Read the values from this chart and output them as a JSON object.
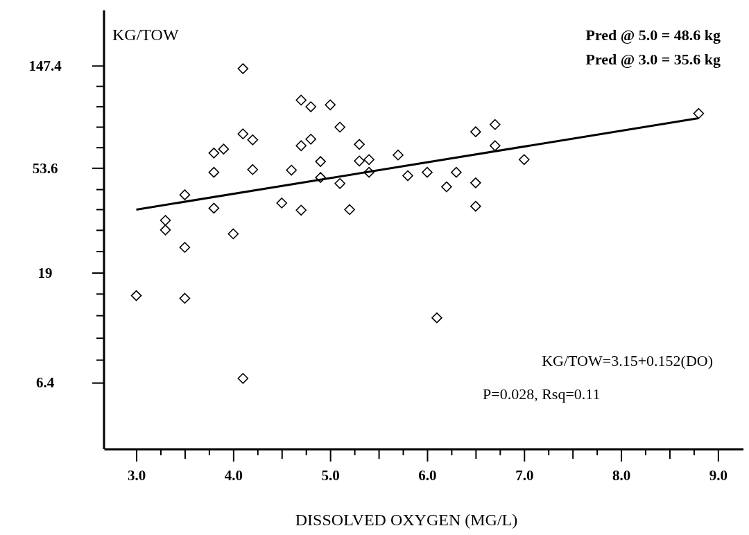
{
  "chart_data": {
    "type": "scatter",
    "xlabel": "DISSOLVED OXYGEN (MG/L)",
    "ylabel": "KG/TOW",
    "xlim": [
      2.667,
      9.262
    ],
    "ylim": [
      3.33,
      255.6
    ],
    "log": true,
    "grid": false,
    "marker": "diamond",
    "xticks": [
      {
        "value": 3,
        "label": "3.0"
      },
      {
        "value": 3.25,
        "label": null
      },
      {
        "value": 3.5,
        "label": null
      },
      {
        "value": 3.75,
        "label": null
      },
      {
        "value": 4,
        "label": "4.0"
      },
      {
        "value": 4.25,
        "label": null
      },
      {
        "value": 4.5,
        "label": null
      },
      {
        "value": 4.75,
        "label": null
      },
      {
        "value": 5,
        "label": "5.0"
      },
      {
        "value": 5.25,
        "label": null
      },
      {
        "value": 5.5,
        "label": null
      },
      {
        "value": 5.75,
        "label": null
      },
      {
        "value": 6,
        "label": "6.0"
      },
      {
        "value": 6.25,
        "label": null
      },
      {
        "value": 6.5,
        "label": null
      },
      {
        "value": 6.75,
        "label": null
      },
      {
        "value": 7,
        "label": "7.0"
      },
      {
        "value": 7.25,
        "label": null
      },
      {
        "value": 7.5,
        "label": null
      },
      {
        "value": 7.75,
        "label": null
      },
      {
        "value": 8,
        "label": "8.0"
      },
      {
        "value": 8.25,
        "label": null
      },
      {
        "value": 8.5,
        "label": null
      },
      {
        "value": 8.75,
        "label": null
      },
      {
        "value": 9,
        "label": "9.0"
      }
    ],
    "yticks": [
      6.4,
      {
        "value": 8.03,
        "label": null
      },
      {
        "value": 9.97,
        "label": null
      },
      {
        "value": 12.46,
        "label": null
      },
      {
        "value": 15.44,
        "label": null
      },
      19,
      {
        "value": 23.5,
        "label": null
      },
      {
        "value": 29.0,
        "label": null
      },
      {
        "value": 35.6,
        "label": null
      },
      {
        "value": 43.4,
        "label": null
      },
      53.6,
      {
        "value": 65.7,
        "label": null
      },
      {
        "value": 80.5,
        "label": null
      },
      {
        "value": 98.5,
        "label": null
      },
      {
        "value": 120.5,
        "label": null
      },
      147.4
    ],
    "series": [
      {
        "color": "#000000",
        "x": [
          3.0,
          3.3,
          3.3,
          3.5,
          3.5,
          3.5,
          3.8,
          3.8,
          3.8,
          3.9,
          4.0,
          4.1,
          4.1,
          4.1,
          4.2,
          4.2,
          4.5,
          4.6,
          4.7,
          4.7,
          4.7,
          4.8,
          4.8,
          4.9,
          4.9,
          5.0,
          5.1,
          5.1,
          5.2,
          5.3,
          5.3,
          5.4,
          5.4,
          5.7,
          5.8,
          6.0,
          6.2,
          6.3,
          6.1,
          6.5,
          6.5,
          6.5,
          6.7,
          6.7,
          7.0,
          8.8
        ],
        "values": [
          15.2,
          32.0,
          29.1,
          41.2,
          24.5,
          14.8,
          62.3,
          51.5,
          36.1,
          64.8,
          28.0,
          143.6,
          75.3,
          6.7,
          71.0,
          52.9,
          38.0,
          52.6,
          105.2,
          67.0,
          35.4,
          98.5,
          71.5,
          57.3,
          48.9,
          100.4,
          80.5,
          46.1,
          35.6,
          67.9,
          57.6,
          58.4,
          51.5,
          61.1,
          49.8,
          51.5,
          44.6,
          51.5,
          12.2,
          76.9,
          46.4,
          36.8,
          82.6,
          67.0,
          58.4,
          92.2
        ]
      },
      {
        "type": "line",
        "color": "#000000",
        "x": [
          3.0,
          8.8
        ],
        "values": [
          35.6,
          88.0
        ],
        "marker": "none",
        "line_style": "solid"
      }
    ],
    "annotations": [
      "Pred @ 5.0 = 48.6 kg",
      "Pred @ 3.0 = 35.6 kg",
      "KG/TOW=3.15+0.152(DO)",
      "P=0.028, Rsq=0.11"
    ]
  }
}
